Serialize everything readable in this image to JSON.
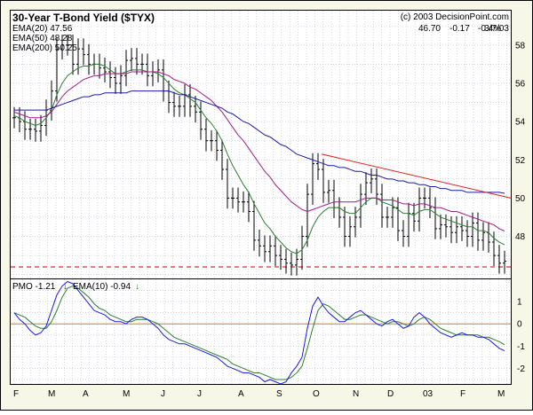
{
  "chart_data": [
    {
      "type": "line",
      "subtype": "ohlc-bars-with-moving-averages",
      "title": "30-Year T-Bond Yield ($TYX)",
      "copyright": "(c) 2003 DecisionPoint.com",
      "last_close": "46.70",
      "change": "-0.17",
      "change_pct": "-0.4%",
      "date": "3/7/03",
      "legend": [
        "EMA(20) 47.56",
        "EMA(50) 48.28",
        "EMA(200) 50.25"
      ],
      "x_labels": [
        "F",
        "M",
        "A",
        "M",
        "J",
        "J",
        "A",
        "S",
        "O",
        "N",
        "D",
        "03",
        "F",
        "M"
      ],
      "y_ticks": [
        "48",
        "50",
        "52",
        "54",
        "56",
        "58"
      ],
      "ylim": [
        45.8,
        59.8
      ],
      "grid": true,
      "legend_position": "top-left",
      "colors": {
        "price_bars": "#000000",
        "ema20": "#2e7d32",
        "ema50": "#a01d8a",
        "ema200": "#1a1aa0",
        "trendline": "#e02020",
        "support": "#c00000"
      },
      "x": [
        0,
        6,
        12,
        18,
        24,
        30,
        36,
        42,
        48,
        54,
        60,
        66,
        72,
        78,
        84,
        90,
        96,
        102,
        108,
        114,
        120,
        126,
        132,
        138,
        144,
        150,
        156,
        162,
        168,
        174,
        180,
        186,
        192,
        198,
        204,
        210,
        216,
        222,
        228,
        234,
        240,
        246,
        252,
        258,
        264,
        270,
        276,
        282,
        288,
        294,
        300,
        306,
        312,
        318,
        324,
        330,
        336,
        342,
        348,
        354,
        360,
        366,
        372,
        378,
        384,
        390,
        396,
        402,
        408,
        414,
        420,
        426,
        432,
        438,
        444,
        450,
        456,
        462,
        468,
        474,
        480,
        486,
        492,
        498,
        504,
        510,
        516,
        522,
        528,
        534,
        540,
        546,
        552
      ],
      "series": [
        {
          "name": "$TYX",
          "values": [
            54.2,
            54.0,
            53.6,
            53.6,
            53.5,
            53.8,
            54.6,
            55.6,
            57.8,
            58.0,
            58.0,
            57.0,
            57.8,
            57.5,
            57.0,
            57.0,
            56.8,
            56.6,
            56.3,
            56.0,
            56.4,
            57.2,
            57.3,
            57.0,
            57.0,
            56.4,
            56.6,
            56.7,
            55.6,
            55.0,
            54.8,
            54.8,
            55.4,
            54.8,
            54.5,
            53.6,
            53.0,
            53.0,
            52.5,
            51.5,
            50.0,
            50.0,
            49.8,
            49.8,
            49.3,
            47.8,
            47.5,
            47.2,
            47.5,
            47.0,
            46.8,
            46.6,
            46.5,
            46.8,
            48.0,
            50.2,
            51.8,
            51.5,
            50.3,
            50.4,
            49.5,
            49.0,
            48.0,
            48.5,
            49.0,
            50.2,
            50.8,
            51.0,
            50.2,
            49.0,
            49.0,
            49.5,
            48.3,
            48.0,
            49.2,
            48.8,
            50.0,
            50.0,
            49.5,
            48.4,
            48.6,
            48.5,
            48.2,
            48.5,
            48.3,
            48.0,
            48.7,
            47.8,
            48.2,
            47.7,
            47.0,
            46.6,
            46.7
          ]
        },
        {
          "name": "EMA(20)",
          "values": [
            54.3,
            54.2,
            54.0,
            53.9,
            53.8,
            53.9,
            54.2,
            54.6,
            55.4,
            56.0,
            56.4,
            56.6,
            56.8,
            56.9,
            56.9,
            57.0,
            57.0,
            56.9,
            56.7,
            56.5,
            56.5,
            56.6,
            56.7,
            56.7,
            56.7,
            56.6,
            56.6,
            56.5,
            56.3,
            56.0,
            55.7,
            55.5,
            55.4,
            55.2,
            55.0,
            54.6,
            54.2,
            53.9,
            53.5,
            53.0,
            52.3,
            51.7,
            51.2,
            50.7,
            50.3,
            49.7,
            49.2,
            48.7,
            48.4,
            48.0,
            47.7,
            47.4,
            47.2,
            47.1,
            47.3,
            47.8,
            48.5,
            49.0,
            49.3,
            49.5,
            49.5,
            49.5,
            49.3,
            49.2,
            49.2,
            49.5,
            49.8,
            50.0,
            50.0,
            49.8,
            49.7,
            49.6,
            49.4,
            49.2,
            49.2,
            49.1,
            49.3,
            49.4,
            49.4,
            49.2,
            49.0,
            48.9,
            48.8,
            48.7,
            48.6,
            48.5,
            48.5,
            48.3,
            48.3,
            48.2,
            47.9,
            47.7,
            47.56
          ]
        },
        {
          "name": "EMA(50)",
          "values": [
            54.5,
            54.4,
            54.3,
            54.2,
            54.2,
            54.2,
            54.3,
            54.5,
            54.9,
            55.3,
            55.6,
            55.8,
            56.0,
            56.2,
            56.3,
            56.4,
            56.4,
            56.5,
            56.5,
            56.5,
            56.5,
            56.5,
            56.6,
            56.6,
            56.6,
            56.6,
            56.6,
            56.6,
            56.5,
            56.4,
            56.2,
            56.1,
            56.0,
            55.8,
            55.7,
            55.5,
            55.3,
            55.1,
            54.8,
            54.5,
            54.1,
            53.7,
            53.3,
            53.0,
            52.6,
            52.2,
            51.8,
            51.4,
            51.1,
            50.7,
            50.4,
            50.1,
            49.8,
            49.6,
            49.4,
            49.3,
            49.4,
            49.5,
            49.6,
            49.7,
            49.8,
            49.8,
            49.8,
            49.8,
            49.8,
            49.9,
            50.0,
            50.0,
            50.0,
            49.9,
            49.9,
            49.9,
            49.8,
            49.7,
            49.7,
            49.6,
            49.7,
            49.7,
            49.6,
            49.5,
            49.5,
            49.4,
            49.3,
            49.3,
            49.2,
            49.1,
            49.0,
            48.9,
            48.8,
            48.7,
            48.6,
            48.4,
            48.28
          ]
        },
        {
          "name": "EMA(200)",
          "values": [
            54.6,
            54.6,
            54.6,
            54.6,
            54.6,
            54.6,
            54.6,
            54.7,
            54.8,
            54.9,
            55.0,
            55.1,
            55.2,
            55.3,
            55.3,
            55.4,
            55.4,
            55.5,
            55.5,
            55.5,
            55.5,
            55.5,
            55.6,
            55.6,
            55.6,
            55.6,
            55.6,
            55.6,
            55.6,
            55.6,
            55.5,
            55.4,
            55.4,
            55.3,
            55.2,
            55.1,
            55.0,
            54.9,
            54.8,
            54.7,
            54.5,
            54.4,
            54.2,
            54.0,
            53.9,
            53.7,
            53.5,
            53.3,
            53.2,
            53.0,
            52.8,
            52.7,
            52.5,
            52.3,
            52.2,
            52.1,
            52.0,
            51.9,
            51.8,
            51.7,
            51.7,
            51.6,
            51.6,
            51.5,
            51.4,
            51.4,
            51.3,
            51.2,
            51.2,
            51.1,
            51.0,
            51.0,
            50.9,
            50.9,
            50.8,
            50.8,
            50.7,
            50.7,
            50.6,
            50.6,
            50.5,
            50.5,
            50.4,
            50.4,
            50.4,
            50.3,
            50.3,
            50.3,
            50.3,
            50.3,
            50.3,
            50.3,
            50.25
          ]
        }
      ],
      "trendline": {
        "from": [
          362,
          52.3
        ],
        "to": [
          575,
          50.0
        ]
      },
      "support": 46.4
    },
    {
      "type": "line",
      "legend": [
        "PMO -1.21",
        "EMA(10) -0.94"
      ],
      "y_ticks": [
        "-2",
        "-1",
        "0",
        "1"
      ],
      "ylim": [
        -2.7,
        2.0
      ],
      "zero_line": 0,
      "grid": true,
      "colors": {
        "pmo": "#1a1ae0",
        "ema10": "#2e7d32",
        "zero": "#e07820",
        "arrow_down": "#1a1ae0",
        "arrow_down_2": "#2e7d32"
      },
      "x": [
        0,
        6,
        12,
        18,
        24,
        30,
        36,
        42,
        48,
        54,
        60,
        66,
        72,
        78,
        84,
        90,
        96,
        102,
        108,
        114,
        120,
        126,
        132,
        138,
        144,
        150,
        156,
        162,
        168,
        174,
        180,
        186,
        192,
        198,
        204,
        210,
        216,
        222,
        228,
        234,
        240,
        246,
        252,
        258,
        264,
        270,
        276,
        282,
        288,
        294,
        300,
        306,
        312,
        318,
        324,
        330,
        336,
        342,
        348,
        354,
        360,
        366,
        372,
        378,
        384,
        390,
        396,
        402,
        408,
        414,
        420,
        426,
        432,
        438,
        444,
        450,
        456,
        462,
        468,
        474,
        480,
        486,
        492,
        498,
        504,
        510,
        516,
        522,
        528,
        534,
        540,
        546,
        552
      ],
      "series": [
        {
          "name": "PMO",
          "values": [
            0.5,
            0.2,
            0.0,
            -0.3,
            -0.5,
            -0.4,
            -0.1,
            0.6,
            1.3,
            1.7,
            1.9,
            1.8,
            1.5,
            1.2,
            0.9,
            0.6,
            0.5,
            0.4,
            0.2,
            0.1,
            0.1,
            0.0,
            0.2,
            0.3,
            0.3,
            0.2,
            0.0,
            -0.2,
            -0.5,
            -0.7,
            -0.8,
            -0.9,
            -0.9,
            -1.0,
            -1.1,
            -1.2,
            -1.3,
            -1.4,
            -1.5,
            -1.7,
            -1.9,
            -2.0,
            -2.1,
            -2.2,
            -2.2,
            -2.3,
            -2.4,
            -2.6,
            -2.5,
            -2.6,
            -2.7,
            -2.6,
            -2.2,
            -1.9,
            -1.5,
            -0.2,
            0.8,
            1.2,
            0.8,
            0.5,
            0.3,
            0.1,
            0.1,
            0.3,
            0.5,
            0.6,
            0.4,
            0.2,
            0.0,
            -0.1,
            0.1,
            0.2,
            0.0,
            -0.2,
            -0.1,
            0.3,
            0.5,
            0.3,
            0.0,
            -0.2,
            -0.4,
            -0.5,
            -0.6,
            -0.5,
            -0.4,
            -0.5,
            -0.5,
            -0.6,
            -0.6,
            -0.7,
            -0.9,
            -1.1,
            -1.21
          ]
        },
        {
          "name": "EMA(10)",
          "values": [
            0.5,
            0.4,
            0.3,
            0.1,
            -0.1,
            -0.2,
            -0.2,
            0.1,
            0.6,
            1.2,
            1.6,
            1.7,
            1.6,
            1.4,
            1.2,
            0.9,
            0.7,
            0.6,
            0.4,
            0.3,
            0.2,
            0.1,
            0.1,
            0.2,
            0.2,
            0.2,
            0.1,
            0.0,
            -0.2,
            -0.4,
            -0.6,
            -0.7,
            -0.8,
            -0.9,
            -1.0,
            -1.1,
            -1.2,
            -1.3,
            -1.4,
            -1.5,
            -1.6,
            -1.8,
            -1.9,
            -2.0,
            -2.1,
            -2.2,
            -2.2,
            -2.3,
            -2.4,
            -2.5,
            -2.5,
            -2.5,
            -2.4,
            -2.2,
            -1.9,
            -1.1,
            -0.2,
            0.6,
            0.9,
            0.8,
            0.6,
            0.4,
            0.2,
            0.2,
            0.3,
            0.4,
            0.4,
            0.3,
            0.2,
            0.1,
            0.0,
            0.1,
            0.1,
            0.0,
            -0.1,
            0.0,
            0.2,
            0.3,
            0.2,
            0.0,
            -0.2,
            -0.3,
            -0.4,
            -0.5,
            -0.5,
            -0.5,
            -0.5,
            -0.5,
            -0.6,
            -0.6,
            -0.7,
            -0.8,
            -0.94
          ]
        }
      ]
    }
  ]
}
